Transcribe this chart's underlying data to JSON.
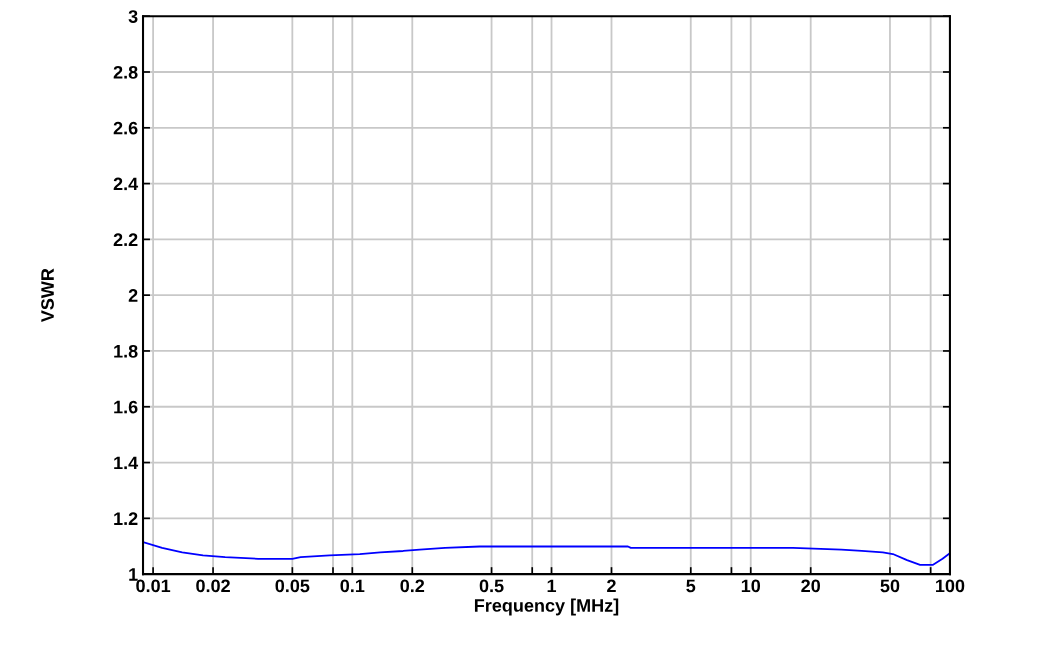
{
  "chart_data": {
    "type": "line",
    "xlabel": "Frequency [MHz]",
    "ylabel": "VSWR",
    "log": "x",
    "grid": true,
    "legend": false,
    "marker": "none",
    "line_style": "solid",
    "xlim": [
      0.0089,
      100
    ],
    "ylim": [
      1,
      3
    ],
    "xticks": [
      0.01,
      0.02,
      0.05,
      {
        "value": 0.08,
        "label": null
      },
      0.1,
      0.2,
      0.5,
      {
        "value": 0.8,
        "label": null
      },
      1,
      2,
      5,
      {
        "value": 8,
        "label": null
      },
      10,
      20,
      50,
      {
        "value": 80,
        "label": null
      },
      100
    ],
    "yticks": [
      1,
      1.2,
      1.4,
      1.6,
      1.8,
      2,
      2.2,
      2.4,
      2.6,
      2.8,
      3
    ],
    "series": [
      {
        "color": "#0000ff",
        "x": [
          0.0089,
          0.0111,
          0.014,
          0.0178,
          0.023,
          0.0337,
          0.05,
          0.055,
          0.077,
          0.109,
          0.138,
          0.18,
          0.218,
          0.292,
          0.436,
          2.42,
          2.5,
          16.3,
          28.5,
          36.1,
          46,
          51.7,
          60.9,
          70.8,
          81.9,
          91.8,
          100
        ],
        "values": [
          1.115,
          1.094,
          1.078,
          1.067,
          1.061,
          1.055,
          1.055,
          1.061,
          1.067,
          1.072,
          1.078,
          1.083,
          1.088,
          1.094,
          1.099,
          1.099,
          1.094,
          1.094,
          1.088,
          1.083,
          1.078,
          1.072,
          1.05,
          1.033,
          1.033,
          1.055,
          1.075
        ]
      }
    ]
  }
}
